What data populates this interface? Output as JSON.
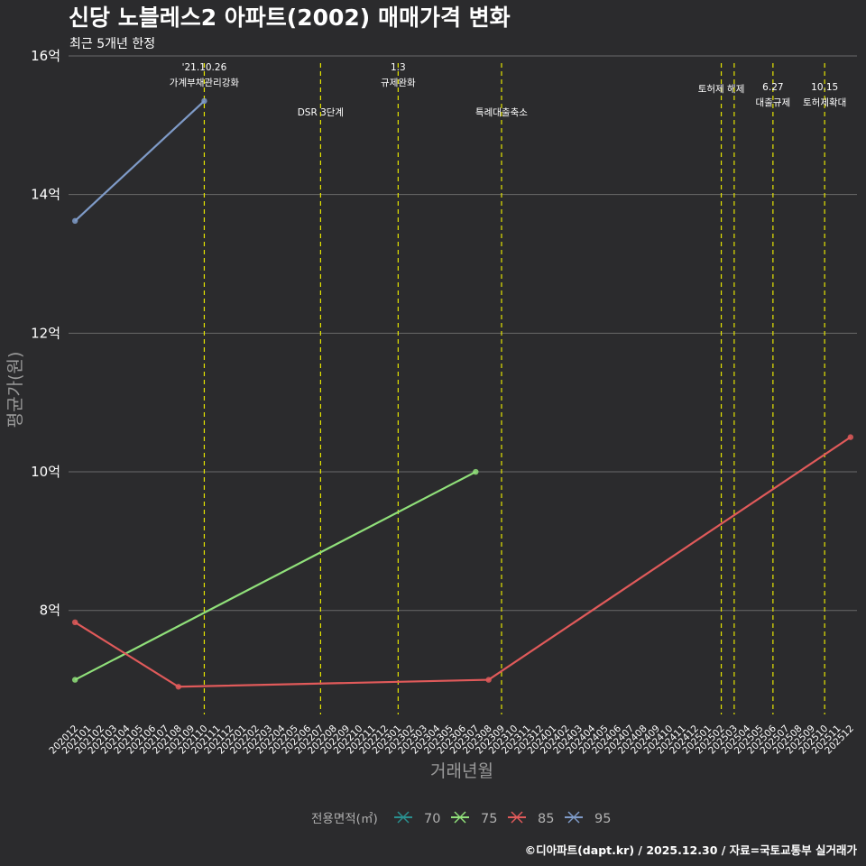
{
  "chart_data": {
    "type": "line",
    "title": "신당 노블레스2 아파트(2002) 매매가격 변화",
    "subtitle": "최근 5개년 한정",
    "xlabel": "거래년월",
    "ylabel": "평균가(원)",
    "caption": "©디아파트(dapt.kr) / 2025.12.30 / 자료=국토교통부 실거래가",
    "ylim": [
      6.5,
      16.0
    ],
    "y_ticks": [
      {
        "value": 8,
        "label": "8억"
      },
      {
        "value": 10,
        "label": "10억"
      },
      {
        "value": 12,
        "label": "12억"
      },
      {
        "value": 14,
        "label": "14억"
      },
      {
        "value": 16,
        "label": "16억"
      }
    ],
    "x_categories": [
      "202012",
      "202101",
      "202102",
      "202103",
      "202104",
      "202105",
      "202106",
      "202107",
      "202108",
      "202109",
      "202110",
      "202111",
      "202112",
      "202201",
      "202202",
      "202203",
      "202204",
      "202205",
      "202206",
      "202207",
      "202208",
      "202209",
      "202210",
      "202211",
      "202212",
      "202301",
      "202302",
      "202303",
      "202304",
      "202305",
      "202306",
      "202307",
      "202308",
      "202309",
      "202310",
      "202311",
      "202312",
      "202401",
      "202402",
      "202403",
      "202404",
      "202405",
      "202406",
      "202407",
      "202408",
      "202409",
      "202410",
      "202411",
      "202412",
      "202501",
      "202502",
      "202503",
      "202504",
      "202505",
      "202506",
      "202507",
      "202508",
      "202509",
      "202510",
      "202511",
      "202512"
    ],
    "legend_title": "전용면적(㎡)",
    "series": [
      {
        "name": "70",
        "color": "#2a8f8f",
        "points": []
      },
      {
        "name": "75",
        "color": "#90e07a",
        "points": [
          {
            "x": "202012",
            "y": 7.0
          },
          {
            "x": "202307",
            "y": 10.0
          }
        ]
      },
      {
        "name": "85",
        "color": "#e05a5a",
        "points": [
          {
            "x": "202012",
            "y": 7.83
          },
          {
            "x": "202108",
            "y": 6.9
          },
          {
            "x": "202308",
            "y": 7.0
          },
          {
            "x": "202512",
            "y": 10.5
          }
        ]
      },
      {
        "name": "95",
        "color": "#7f9bc8",
        "points": [
          {
            "x": "202012",
            "y": 13.62
          },
          {
            "x": "202110",
            "y": 15.35
          }
        ]
      }
    ],
    "events": [
      {
        "x": "202110",
        "lines": [
          "'21.10.26",
          "가계부채관리강화"
        ],
        "level": 0
      },
      {
        "x": "202207",
        "lines": [
          "DSR 3단계"
        ],
        "level": 2
      },
      {
        "x": "202301",
        "lines": [
          "1.3",
          "규제완화"
        ],
        "level": 0
      },
      {
        "x": "202309",
        "lines": [
          "특례대출축소"
        ],
        "level": 2
      },
      {
        "x": "202502",
        "lines": [
          "토허제 해제"
        ],
        "level": 1
      },
      {
        "x": "202503",
        "lines": [],
        "level": 1
      },
      {
        "x": "202506",
        "lines": [
          "6.27",
          "대출규제"
        ],
        "level": 3
      },
      {
        "x": "202510",
        "lines": [
          "10.15",
          "토허제확대"
        ],
        "level": 3
      }
    ]
  }
}
